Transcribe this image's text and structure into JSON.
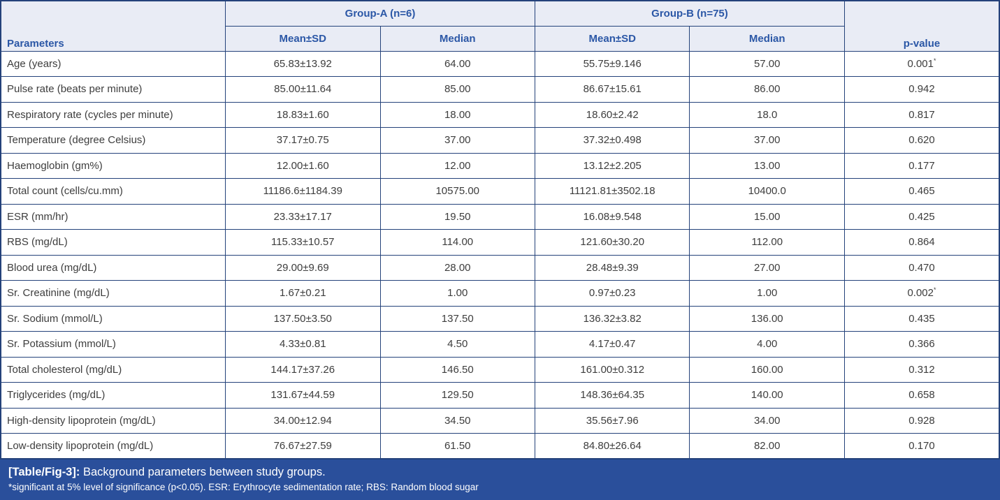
{
  "colors": {
    "header_background": "#e9ecf5",
    "header_text": "#2b57a6",
    "border": "#24427a",
    "body_text": "#404040",
    "caption_background": "#2a4f9b",
    "caption_text": "#ffffff"
  },
  "table": {
    "header": {
      "parameters_label": "Parameters",
      "group_a_label": "Group-A (n=6)",
      "group_b_label": "Group-B (n=75)",
      "mean_sd_label": "Mean±SD",
      "median_label": "Median",
      "p_value_label": "p-value"
    },
    "rows": [
      {
        "parameter": "Age (years)",
        "a_mean_sd": "65.83±13.92",
        "a_median": "64.00",
        "b_mean_sd": "55.75±9.146",
        "b_median": "57.00",
        "p_value": "0.001",
        "p_marker": "*"
      },
      {
        "parameter": "Pulse rate (beats per minute)",
        "a_mean_sd": "85.00±11.64",
        "a_median": "85.00",
        "b_mean_sd": "86.67±15.61",
        "b_median": "86.00",
        "p_value": "0.942",
        "p_marker": ""
      },
      {
        "parameter": "Respiratory rate (cycles per minute)",
        "a_mean_sd": "18.83±1.60",
        "a_median": "18.00",
        "b_mean_sd": "18.60±2.42",
        "b_median": "18.0",
        "p_value": "0.817",
        "p_marker": ""
      },
      {
        "parameter": "Temperature (degree Celsius)",
        "a_mean_sd": "37.17±0.75",
        "a_median": "37.00",
        "b_mean_sd": "37.32±0.498",
        "b_median": "37.00",
        "p_value": "0.620",
        "p_marker": ""
      },
      {
        "parameter": "Haemoglobin (gm%)",
        "a_mean_sd": "12.00±1.60",
        "a_median": "12.00",
        "b_mean_sd": "13.12±2.205",
        "b_median": "13.00",
        "p_value": "0.177",
        "p_marker": ""
      },
      {
        "parameter": "Total count (cells/cu.mm)",
        "a_mean_sd": "11186.6±1184.39",
        "a_median": "10575.00",
        "b_mean_sd": "11121.81±3502.18",
        "b_median": "10400.0",
        "p_value": "0.465",
        "p_marker": ""
      },
      {
        "parameter": "ESR (mm/hr)",
        "a_mean_sd": "23.33±17.17",
        "a_median": "19.50",
        "b_mean_sd": "16.08±9.548",
        "b_median": "15.00",
        "p_value": "0.425",
        "p_marker": ""
      },
      {
        "parameter": "RBS (mg/dL)",
        "a_mean_sd": "115.33±10.57",
        "a_median": "114.00",
        "b_mean_sd": "121.60±30.20",
        "b_median": "112.00",
        "p_value": "0.864",
        "p_marker": ""
      },
      {
        "parameter": "Blood urea (mg/dL)",
        "a_mean_sd": "29.00±9.69",
        "a_median": "28.00",
        "b_mean_sd": "28.48±9.39",
        "b_median": "27.00",
        "p_value": "0.470",
        "p_marker": ""
      },
      {
        "parameter": "Sr. Creatinine (mg/dL)",
        "a_mean_sd": "1.67±0.21",
        "a_median": "1.00",
        "b_mean_sd": "0.97±0.23",
        "b_median": "1.00",
        "p_value": "0.002",
        "p_marker": "*"
      },
      {
        "parameter": "Sr. Sodium (mmol/L)",
        "a_mean_sd": "137.50±3.50",
        "a_median": "137.50",
        "b_mean_sd": "136.32±3.82",
        "b_median": "136.00",
        "p_value": "0.435",
        "p_marker": ""
      },
      {
        "parameter": "Sr. Potassium (mmol/L)",
        "a_mean_sd": "4.33±0.81",
        "a_median": "4.50",
        "b_mean_sd": "4.17±0.47",
        "b_median": "4.00",
        "p_value": "0.366",
        "p_marker": ""
      },
      {
        "parameter": "Total cholesterol (mg/dL)",
        "a_mean_sd": "144.17±37.26",
        "a_median": "146.50",
        "b_mean_sd": "161.00±0.312",
        "b_median": "160.00",
        "p_value": "0.312",
        "p_marker": ""
      },
      {
        "parameter": "Triglycerides (mg/dL)",
        "a_mean_sd": "131.67±44.59",
        "a_median": "129.50",
        "b_mean_sd": "148.36±64.35",
        "b_median": "140.00",
        "p_value": "0.658",
        "p_marker": ""
      },
      {
        "parameter": "High-density lipoprotein (mg/dL)",
        "a_mean_sd": "34.00±12.94",
        "a_median": "34.50",
        "b_mean_sd": "35.56±7.96",
        "b_median": "34.00",
        "p_value": "0.928",
        "p_marker": ""
      },
      {
        "parameter": "Low-density lipoprotein (mg/dL)",
        "a_mean_sd": "76.67±27.59",
        "a_median": "61.50",
        "b_mean_sd": "84.80±26.64",
        "b_median": "82.00",
        "p_value": "0.170",
        "p_marker": ""
      }
    ]
  },
  "caption": {
    "label": "[Table/Fig-3]:",
    "text": "Background parameters between study groups.",
    "footnote": "*significant at 5% level of significance (p<0.05). ESR: Erythrocyte sedimentation rate; RBS: Random blood sugar"
  }
}
